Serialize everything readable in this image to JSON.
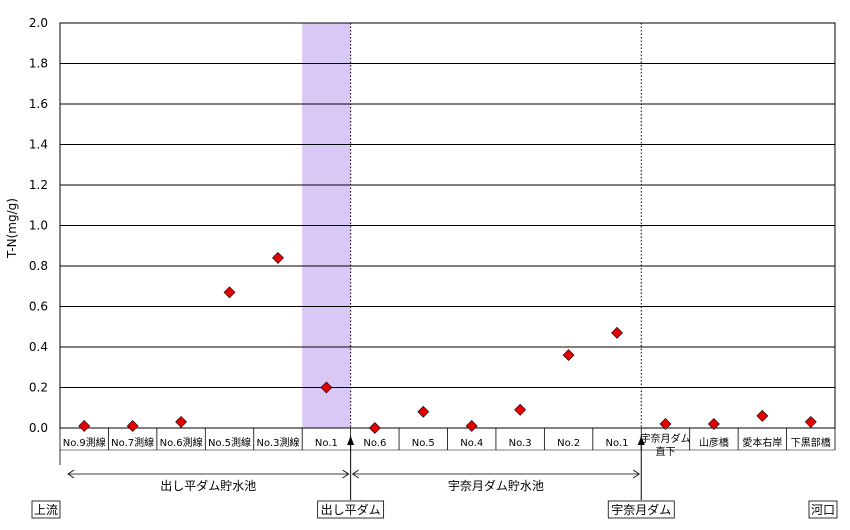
{
  "chart_data": {
    "type": "scatter",
    "ylabel": "T-N(mg/g)",
    "ylim": [
      0,
      2.0
    ],
    "yticks": [
      "0.0",
      "0.2",
      "0.4",
      "0.6",
      "0.8",
      "1.0",
      "1.2",
      "1.4",
      "1.6",
      "1.8",
      "2.0"
    ],
    "grid": true,
    "marker": "diamond",
    "marker_color": "#e30000",
    "highlight_color": "#d9c8f5",
    "highlight_category": "No.1",
    "categories": [
      "No.9測線",
      "No.7測線",
      "No.6測線",
      "No.5測線",
      "No.3測線",
      "No.1",
      "No.6",
      "No.5",
      "No.4",
      "No.3",
      "No.2",
      "No.1",
      "宇奈月ダム直下",
      "山彦橋",
      "愛本右岸",
      "下黒部橋"
    ],
    "values": [
      0.01,
      0.01,
      0.03,
      0.67,
      0.84,
      0.2,
      0.0,
      0.08,
      0.01,
      0.09,
      0.36,
      0.47,
      0.02,
      0.02,
      0.06,
      0.03
    ],
    "sections": [
      {
        "label": "出し平ダム貯水池"
      },
      {
        "label": "宇奈月ダム貯水池"
      }
    ],
    "landmarks": [
      "上流",
      "出し平ダム",
      "宇奈月ダム",
      "河口"
    ]
  }
}
